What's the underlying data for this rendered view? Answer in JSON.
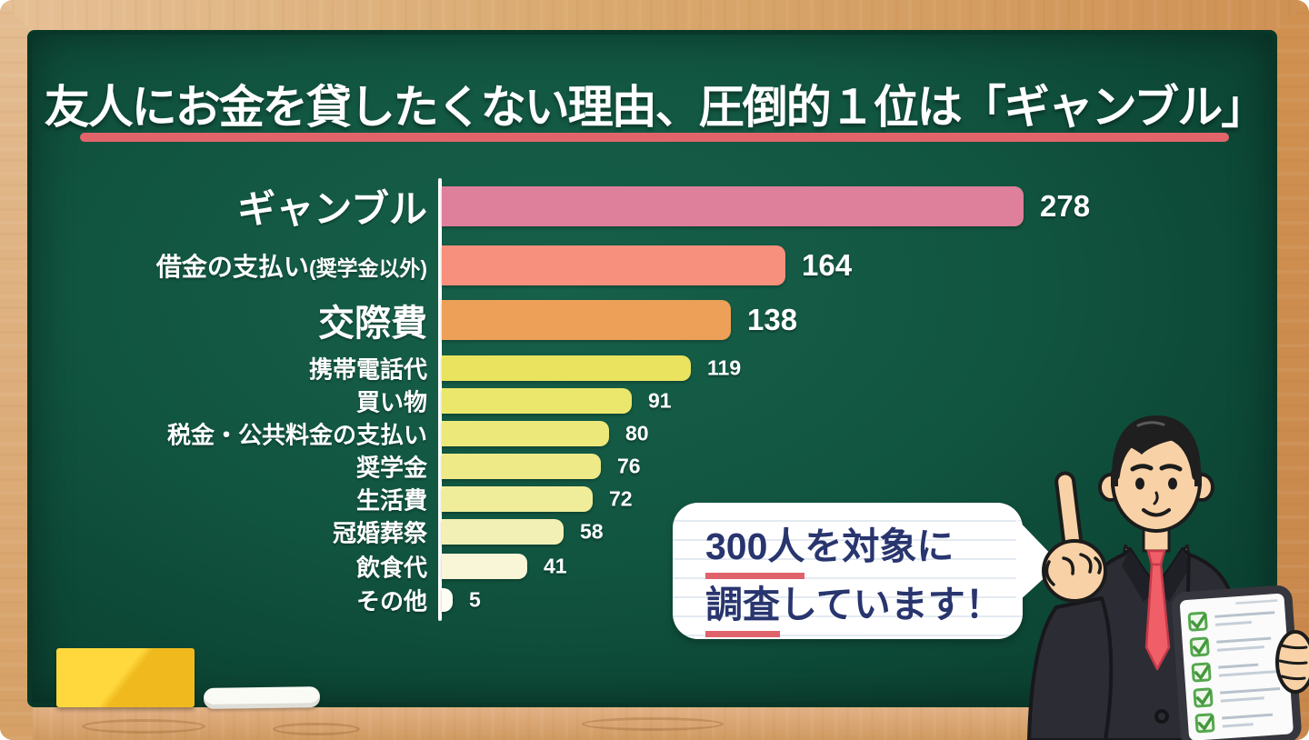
{
  "title": {
    "text": "友人にお金を貸したくない理由、圧倒的１位は「ギャンブル」"
  },
  "chart_data": {
    "type": "bar",
    "orientation": "horizontal",
    "title": "友人にお金を貸したくない理由、圧倒的１位は「ギャンブル」",
    "categories": [
      "ギャンブル",
      "借金の支払い(奨学金以外)",
      "交際費",
      "携帯電話代",
      "買い物",
      "税金・公共料金の支払い",
      "奨学金",
      "生活費",
      "冠婚葬祭",
      "飲食代",
      "その他"
    ],
    "values": [
      278,
      164,
      138,
      119,
      91,
      80,
      76,
      72,
      58,
      41,
      5
    ],
    "series_colors": [
      "#de7f9c",
      "#f7907c",
      "#eda058",
      "#e9e35f",
      "#ebe76d",
      "#ece87a",
      "#eeea88",
      "#f0ed9a",
      "#f3f0b5",
      "#f8f6d6",
      "#fdfdf3"
    ],
    "xlim": [
      0,
      300
    ],
    "gridlines": false,
    "value_labels": true,
    "axis_baseline_color": "#ffffff",
    "legend": "none"
  },
  "bubble": {
    "line1_em": "300人",
    "line1_rest": "を対象に",
    "line2_em": "調査",
    "line2_rest": "しています！"
  },
  "colors": {
    "board_green": "#115540",
    "frame_wood": "#d8a76e",
    "title_underline": "#e2646b",
    "bubble_text": "#28356e",
    "bubble_underline": "#e0636b",
    "eraser_yellow": "#fbcf2c",
    "chalk_white": "#fbfbf6",
    "bar_text": "#ffffff"
  }
}
